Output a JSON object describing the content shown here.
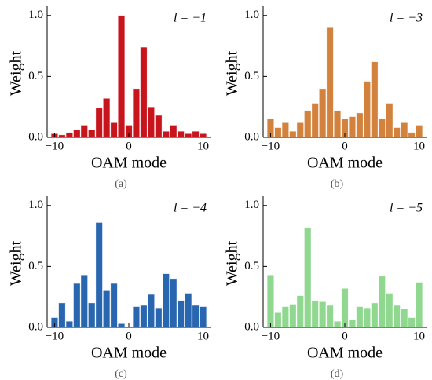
{
  "chart_data": [
    {
      "type": "bar",
      "annotation": "l = −1",
      "caption": "(a)",
      "xlabel": "OAM mode",
      "ylabel": "Weight",
      "color": "#c8141c",
      "x": [
        -10,
        -9,
        -8,
        -7,
        -6,
        -5,
        -4,
        -3,
        -2,
        -1,
        0,
        1,
        2,
        3,
        4,
        5,
        6,
        7,
        8,
        9,
        10
      ],
      "values": [
        0.03,
        0.02,
        0.04,
        0.06,
        0.1,
        0.06,
        0.24,
        0.32,
        0.12,
        1.0,
        0.1,
        0.4,
        0.74,
        0.25,
        0.18,
        0.05,
        0.1,
        0.05,
        0.03,
        0.05,
        0.03
      ],
      "xlim": [
        -11,
        11
      ],
      "xticks": [
        {
          "value": -10,
          "label": "−10"
        },
        0,
        10
      ],
      "ylim": [
        0,
        1.05
      ],
      "yticks": [
        {
          "value": 0,
          "label": "0.0"
        },
        {
          "value": 0.5,
          "label": "0.5"
        },
        {
          "value": 1,
          "label": "1.0"
        }
      ]
    },
    {
      "type": "bar",
      "annotation": "l = −3",
      "caption": "(b)",
      "xlabel": "OAM mode",
      "ylabel": "Weight",
      "color": "#d2823c",
      "x": [
        -10,
        -9,
        -8,
        -7,
        -6,
        -5,
        -4,
        -3,
        -2,
        -1,
        0,
        1,
        2,
        3,
        4,
        5,
        6,
        7,
        8,
        9,
        10
      ],
      "values": [
        0.15,
        0.08,
        0.12,
        0.05,
        0.12,
        0.22,
        0.28,
        0.4,
        0.9,
        0.22,
        0.15,
        0.17,
        0.2,
        0.46,
        0.62,
        0.15,
        0.28,
        0.08,
        0.12,
        0.04,
        0.1
      ],
      "xlim": [
        -11,
        11
      ],
      "xticks": [
        {
          "value": -10,
          "label": "−10"
        },
        0,
        10
      ],
      "ylim": [
        0,
        1.05
      ],
      "yticks": [
        {
          "value": 0,
          "label": "0.0"
        },
        {
          "value": 0.5,
          "label": "0.5"
        },
        {
          "value": 1,
          "label": "1.0"
        }
      ]
    },
    {
      "type": "bar",
      "annotation": "l = −4",
      "caption": "(c)",
      "xlabel": "OAM mode",
      "ylabel": "Weight",
      "color": "#2866b0",
      "x": [
        -10,
        -9,
        -8,
        -7,
        -6,
        -5,
        -4,
        -3,
        -2,
        -1,
        0,
        1,
        2,
        3,
        4,
        5,
        6,
        7,
        8,
        9,
        10
      ],
      "values": [
        0.08,
        0.2,
        0.05,
        0.36,
        0.43,
        0.2,
        0.86,
        0.3,
        0.36,
        0.03,
        0.0,
        0.17,
        0.18,
        0.27,
        0.16,
        0.44,
        0.4,
        0.22,
        0.28,
        0.18,
        0.17
      ],
      "xlim": [
        -11,
        11
      ],
      "xticks": [
        {
          "value": -10,
          "label": "−10"
        },
        0,
        10
      ],
      "ylim": [
        0,
        1.05
      ],
      "yticks": [
        {
          "value": 0,
          "label": "0.0"
        },
        {
          "value": 0.5,
          "label": "0.5"
        },
        {
          "value": 1,
          "label": "1.0"
        }
      ]
    },
    {
      "type": "bar",
      "annotation": "l = −5",
      "caption": "(d)",
      "xlabel": "OAM mode",
      "ylabel": "Weight",
      "color": "#90d890",
      "x": [
        -10,
        -9,
        -8,
        -7,
        -6,
        -5,
        -4,
        -3,
        -2,
        -1,
        0,
        1,
        2,
        3,
        4,
        5,
        6,
        7,
        8,
        9,
        10
      ],
      "values": [
        0.43,
        0.12,
        0.17,
        0.19,
        0.26,
        0.82,
        0.22,
        0.21,
        0.18,
        0.05,
        0.32,
        0.06,
        0.17,
        0.16,
        0.2,
        0.42,
        0.28,
        0.18,
        0.15,
        0.08,
        0.37
      ],
      "xlim": [
        -11,
        11
      ],
      "xticks": [
        {
          "value": -10,
          "label": "−10"
        },
        0,
        10
      ],
      "ylim": [
        0,
        1.05
      ],
      "yticks": [
        {
          "value": 0,
          "label": "0.0"
        },
        {
          "value": 0.5,
          "label": "0.5"
        },
        {
          "value": 1,
          "label": "1.0"
        }
      ]
    }
  ]
}
